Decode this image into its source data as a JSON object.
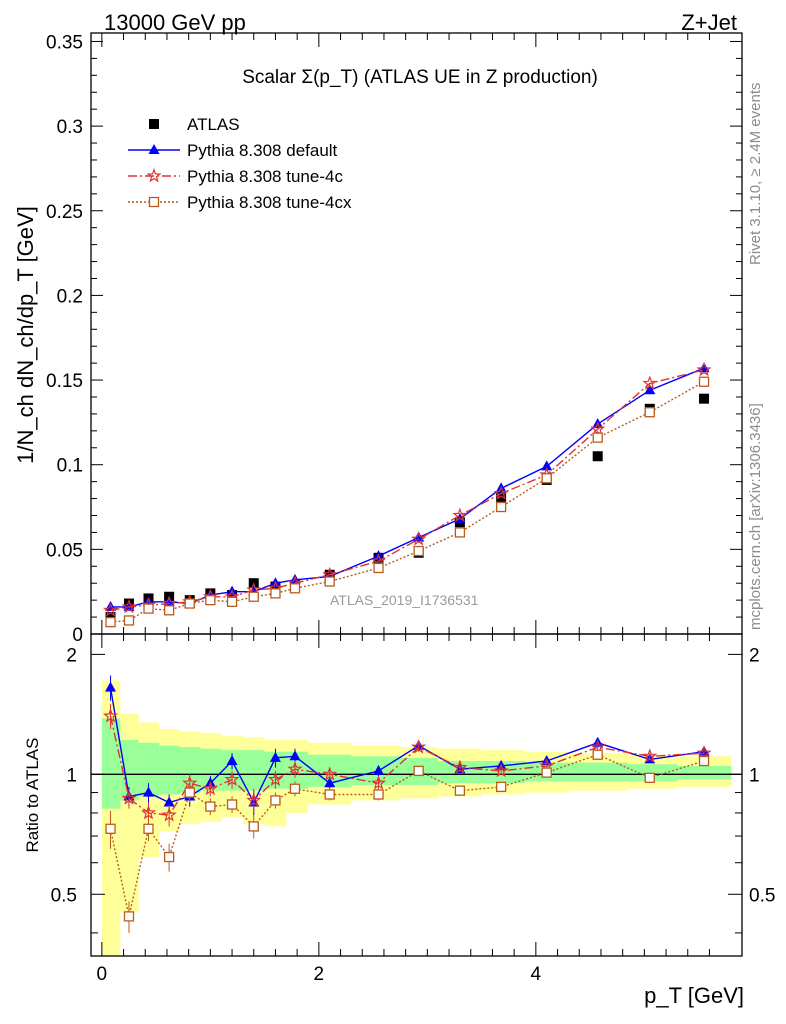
{
  "header": {
    "left": "13000 GeV pp",
    "right": "Z+Jet"
  },
  "side_labels": {
    "rivet": "Rivet 3.1.10, ≥ 2.4M events",
    "mcplots": "mcplots.cern.ch [arXiv:1306.3436]"
  },
  "analysis_id": "ATLAS_2019_I1736531",
  "colors": {
    "atlas": "#000000",
    "default": "#0000ff",
    "tune4c": "#dd3333",
    "tune4cx": "#b85c1e",
    "band_inner": "#99ff99",
    "band_outer": "#ffff99"
  },
  "chart_data": [
    {
      "type": "scatter",
      "panel": "main",
      "title": "Scalar Σ(p_T) (ATLAS UE in Z production)",
      "xlabel": "p_T [GeV]",
      "ylabel": "1/N_ch dN_ch/dp_T [GeV]",
      "xlim": [
        -0.1,
        5.9
      ],
      "ylim": [
        0,
        0.355
      ],
      "y_ticks": [
        "0",
        "0.05",
        "0.1",
        "0.15",
        "0.2",
        "0.25",
        "0.3",
        "0.35"
      ],
      "legend_position": "top-left",
      "x": [
        0.08,
        0.25,
        0.43,
        0.62,
        0.81,
        1.0,
        1.2,
        1.4,
        1.6,
        1.78,
        2.1,
        2.55,
        2.92,
        3.3,
        3.68,
        4.1,
        4.57,
        5.05,
        5.55
      ],
      "series": [
        {
          "name": "ATLAS",
          "marker": "square",
          "values": [
            0.01,
            0.018,
            0.021,
            0.022,
            0.02,
            0.024,
            0.023,
            0.03,
            0.028,
            0.029,
            0.035,
            0.045,
            0.048,
            0.066,
            0.081,
            0.091,
            0.105,
            0.133,
            0.139
          ]
        },
        {
          "name": "Pythia 8.308 default",
          "marker": "triangle",
          "line": "solid",
          "values": [
            0.016,
            0.016,
            0.019,
            0.019,
            0.018,
            0.023,
            0.025,
            0.025,
            0.03,
            0.032,
            0.034,
            0.046,
            0.057,
            0.068,
            0.086,
            0.099,
            0.124,
            0.144,
            0.157
          ]
        },
        {
          "name": "Pythia 8.308 tune-4c",
          "marker": "star",
          "line": "dashdot",
          "values": [
            0.014,
            0.016,
            0.017,
            0.018,
            0.019,
            0.022,
            0.022,
            0.026,
            0.027,
            0.03,
            0.035,
            0.043,
            0.056,
            0.07,
            0.083,
            0.094,
            0.121,
            0.148,
            0.156
          ]
        },
        {
          "name": "Pythia 8.308 tune-4cx",
          "marker": "open-square",
          "line": "dotted",
          "values": [
            0.007,
            0.008,
            0.015,
            0.014,
            0.018,
            0.02,
            0.019,
            0.022,
            0.024,
            0.027,
            0.031,
            0.039,
            0.049,
            0.06,
            0.075,
            0.092,
            0.116,
            0.131,
            0.149
          ]
        }
      ]
    },
    {
      "type": "line",
      "panel": "ratio",
      "xlabel": "p_T [GeV]",
      "ylabel": "Ratio to ATLAS",
      "xlim": [
        -0.1,
        5.9
      ],
      "ylim": [
        0.35,
        2.25
      ],
      "log_y": true,
      "x_ticks": [
        "0",
        "2",
        "4"
      ],
      "y_ticks": [
        "0.5",
        "1",
        "2"
      ],
      "x": [
        0.08,
        0.25,
        0.43,
        0.62,
        0.81,
        1.0,
        1.2,
        1.4,
        1.6,
        1.78,
        2.1,
        2.55,
        2.92,
        3.3,
        3.68,
        4.1,
        4.57,
        5.05,
        5.55
      ],
      "band_edges": [
        0.0,
        0.17,
        0.34,
        0.53,
        0.72,
        0.91,
        1.1,
        1.3,
        1.5,
        1.7,
        1.9,
        2.3,
        2.75,
        3.1,
        3.5,
        3.9,
        4.3,
        4.85,
        5.3,
        5.8
      ],
      "band_inner": [
        [
          0.82,
          1.38
        ],
        [
          0.86,
          1.22
        ],
        [
          0.88,
          1.2
        ],
        [
          0.89,
          1.18
        ],
        [
          0.9,
          1.17
        ],
        [
          0.91,
          1.16
        ],
        [
          0.91,
          1.15
        ],
        [
          0.91,
          1.15
        ],
        [
          0.92,
          1.14
        ],
        [
          0.92,
          1.14
        ],
        [
          0.93,
          1.12
        ],
        [
          0.94,
          1.11
        ],
        [
          0.94,
          1.1
        ],
        [
          0.95,
          1.08
        ],
        [
          0.95,
          1.08
        ],
        [
          0.96,
          1.07
        ],
        [
          0.96,
          1.07
        ],
        [
          0.96,
          1.06
        ],
        [
          0.97,
          1.05
        ]
      ],
      "band_outer": [
        [
          0.35,
          1.72
        ],
        [
          0.45,
          1.42
        ],
        [
          0.62,
          1.35
        ],
        [
          0.72,
          1.3
        ],
        [
          0.75,
          1.28
        ],
        [
          0.76,
          1.27
        ],
        [
          0.78,
          1.25
        ],
        [
          0.75,
          1.24
        ],
        [
          0.74,
          1.22
        ],
        [
          0.8,
          1.22
        ],
        [
          0.84,
          1.2
        ],
        [
          0.86,
          1.18
        ],
        [
          0.87,
          1.17
        ],
        [
          0.88,
          1.16
        ],
        [
          0.89,
          1.15
        ],
        [
          0.9,
          1.14
        ],
        [
          0.91,
          1.13
        ],
        [
          0.92,
          1.12
        ],
        [
          0.93,
          1.11
        ]
      ],
      "series": [
        {
          "name": "Pythia 8.308 default",
          "values": [
            1.65,
            0.88,
            0.9,
            0.85,
            0.88,
            0.95,
            1.08,
            0.85,
            1.1,
            1.11,
            0.95,
            1.02,
            1.18,
            1.03,
            1.05,
            1.08,
            1.2,
            1.09,
            1.14
          ],
          "errors": [
            0.12,
            0.05,
            0.05,
            0.04,
            0.05,
            0.04,
            0.05,
            0.06,
            0.06,
            0.05,
            0.03,
            0.03,
            0.03,
            0.02,
            0.02,
            0.02,
            0.02,
            0.02,
            0.02
          ]
        },
        {
          "name": "Pythia 8.308 tune-4c",
          "values": [
            1.4,
            0.87,
            0.8,
            0.79,
            0.95,
            0.92,
            0.97,
            0.86,
            0.97,
            1.03,
            1.0,
            0.95,
            1.17,
            1.04,
            1.02,
            1.05,
            1.17,
            1.11,
            1.13
          ],
          "errors": [
            0.1,
            0.05,
            0.05,
            0.05,
            0.05,
            0.04,
            0.05,
            0.06,
            0.05,
            0.05,
            0.03,
            0.03,
            0.03,
            0.02,
            0.02,
            0.02,
            0.02,
            0.02,
            0.02
          ]
        },
        {
          "name": "Pythia 8.308 tune-4cx",
          "values": [
            0.73,
            0.44,
            0.73,
            0.62,
            0.9,
            0.83,
            0.84,
            0.74,
            0.86,
            0.92,
            0.89,
            0.89,
            1.02,
            0.91,
            0.93,
            1.01,
            1.12,
            0.98,
            1.08
          ],
          "errors": [
            0.08,
            0.04,
            0.05,
            0.05,
            0.05,
            0.04,
            0.04,
            0.05,
            0.04,
            0.04,
            0.03,
            0.03,
            0.02,
            0.02,
            0.02,
            0.02,
            0.02,
            0.02,
            0.02
          ]
        }
      ]
    }
  ]
}
